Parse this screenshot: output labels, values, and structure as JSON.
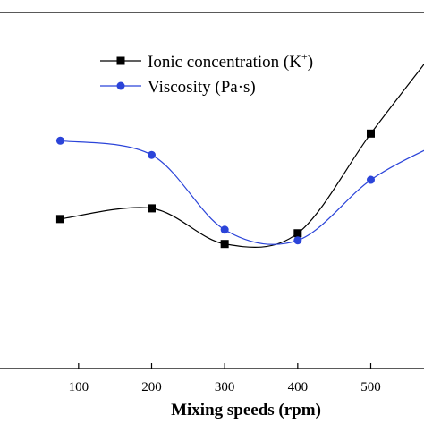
{
  "chart_data": {
    "type": "line",
    "xlabel": "Mixing speeds (rpm)",
    "ylabel": "",
    "x_ticks": [
      100,
      200,
      300,
      400,
      500
    ],
    "xlim": [
      -10,
      590
    ],
    "ylim": [
      0,
      1
    ],
    "legend_position": "top-center",
    "grid": false,
    "series": [
      {
        "name": "Ionic concentration (K",
        "name_sup": "+",
        "name_close": ")",
        "color": "#000000",
        "marker": "square",
        "x": [
          75,
          200,
          300,
          400,
          500
        ],
        "y": [
          0.42,
          0.45,
          0.35,
          0.38,
          0.66
        ],
        "curve_end": {
          "x": 590,
          "y": 0.9
        }
      },
      {
        "name": "Viscosity (Pa·s)",
        "color": "#2b44d9",
        "marker": "circle",
        "x": [
          75,
          200,
          300,
          400,
          500
        ],
        "y": [
          0.64,
          0.6,
          0.39,
          0.36,
          0.53
        ],
        "curve_end": {
          "x": 590,
          "y": 0.63
        }
      }
    ]
  }
}
